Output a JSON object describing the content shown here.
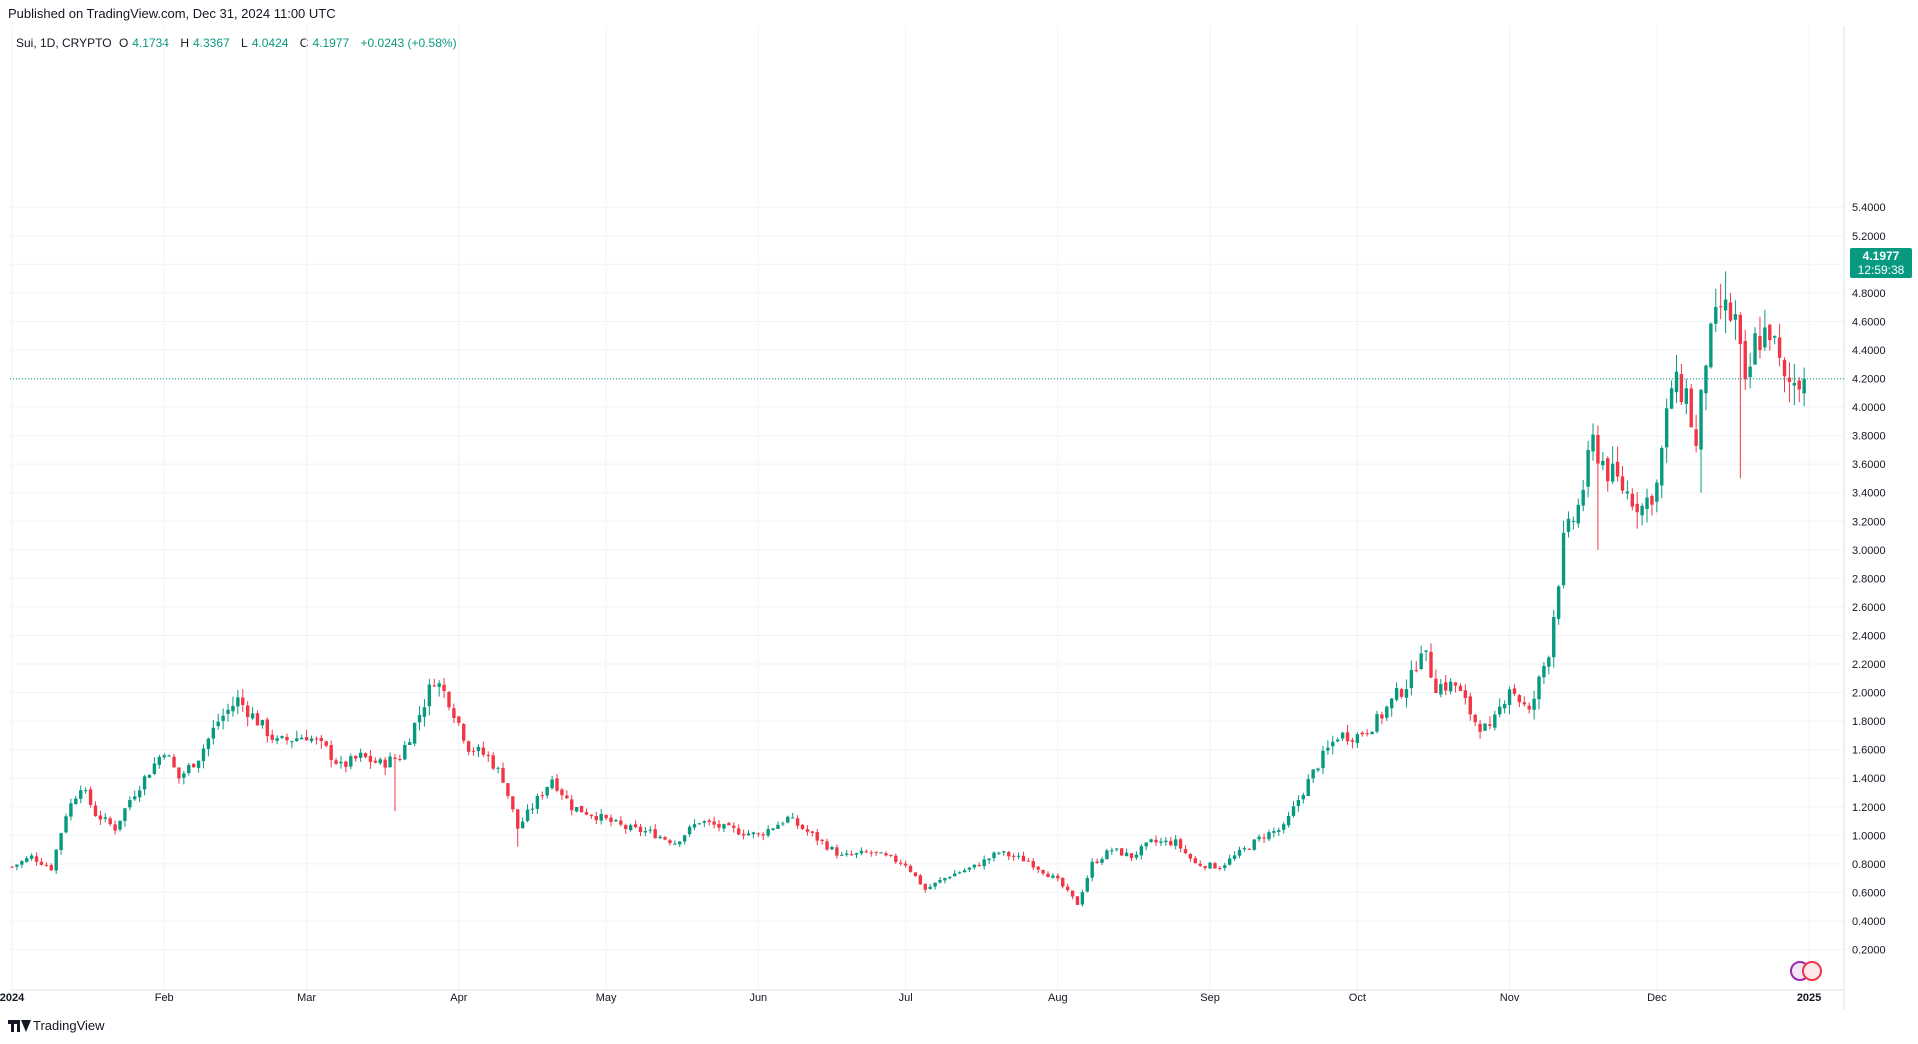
{
  "header": {
    "published": "Published on TradingView.com, Dec 31, 2024 11:00 UTC"
  },
  "legend": {
    "symbol": "Sui, 1D, CRYPTO",
    "open_label": "O",
    "open": "4.1734",
    "high_label": "H",
    "high": "4.3367",
    "low_label": "L",
    "low": "4.0424",
    "close_label": "C",
    "close": "4.1977",
    "change": "+0.0243 (+0.58%)"
  },
  "price_tag": {
    "price": "4.1977",
    "countdown": "12:59:38"
  },
  "footer": {
    "brand": "TradingView"
  },
  "colors": {
    "up": "#089981",
    "down": "#F23645",
    "grid": "#F0F3FA",
    "axis_text": "#131722",
    "last_price_line": "#089981"
  },
  "icons": {
    "logo": "tradingview-logo-icon",
    "events": "economic-events-icon"
  },
  "chart_data": {
    "type": "candlestick",
    "title": "",
    "xlabel": "",
    "ylabel": "",
    "ylim": [
      0,
      5.5
    ],
    "grid": true,
    "y_ticks": [
      "0.2000",
      "0.4000",
      "0.6000",
      "0.8000",
      "1.0000",
      "1.2000",
      "1.4000",
      "1.6000",
      "1.8000",
      "2.0000",
      "2.2000",
      "2.4000",
      "2.6000",
      "2.8000",
      "3.0000",
      "3.2000",
      "3.4000",
      "3.6000",
      "3.8000",
      "4.0000",
      "4.2000",
      "4.4000",
      "4.6000",
      "4.8000",
      "5.0000",
      "5.2000",
      "5.4000"
    ],
    "x_ticks": [
      {
        "label": "2024",
        "date": "2024-01-01"
      },
      {
        "label": "Feb",
        "date": "2024-02-01"
      },
      {
        "label": "Mar",
        "date": "2024-03-01"
      },
      {
        "label": "Apr",
        "date": "2024-04-01"
      },
      {
        "label": "May",
        "date": "2024-05-01"
      },
      {
        "label": "Jun",
        "date": "2024-06-01"
      },
      {
        "label": "Jul",
        "date": "2024-07-01"
      },
      {
        "label": "Aug",
        "date": "2024-08-01"
      },
      {
        "label": "Sep",
        "date": "2024-09-01"
      },
      {
        "label": "Oct",
        "date": "2024-10-01"
      },
      {
        "label": "Nov",
        "date": "2024-11-01"
      },
      {
        "label": "Dec",
        "date": "2024-12-01"
      },
      {
        "label": "2025",
        "date": "2025-01-01"
      }
    ],
    "last_price": 4.1977,
    "start_date": "2024-01-01",
    "end_date": "2024-12-31",
    "close_anchors": [
      [
        "2024-01-01",
        0.78
      ],
      [
        "2024-01-05",
        0.85
      ],
      [
        "2024-01-09",
        0.77
      ],
      [
        "2024-01-12",
        1.15
      ],
      [
        "2024-01-15",
        1.35
      ],
      [
        "2024-01-18",
        1.15
      ],
      [
        "2024-01-22",
        1.05
      ],
      [
        "2024-01-25",
        1.25
      ],
      [
        "2024-01-28",
        1.4
      ],
      [
        "2024-02-01",
        1.6
      ],
      [
        "2024-02-04",
        1.4
      ],
      [
        "2024-02-08",
        1.55
      ],
      [
        "2024-02-12",
        1.8
      ],
      [
        "2024-02-16",
        1.95
      ],
      [
        "2024-02-20",
        1.8
      ],
      [
        "2024-02-24",
        1.65
      ],
      [
        "2024-03-01",
        1.7
      ],
      [
        "2024-03-05",
        1.6
      ],
      [
        "2024-03-08",
        1.48
      ],
      [
        "2024-03-12",
        1.55
      ],
      [
        "2024-03-16",
        1.5
      ],
      [
        "2024-03-20",
        1.55
      ],
      [
        "2024-03-24",
        1.85
      ],
      [
        "2024-03-27",
        2.1
      ],
      [
        "2024-03-30",
        1.95
      ],
      [
        "2024-04-03",
        1.62
      ],
      [
        "2024-04-07",
        1.55
      ],
      [
        "2024-04-10",
        1.4
      ],
      [
        "2024-04-13",
        1.05
      ],
      [
        "2024-04-17",
        1.25
      ],
      [
        "2024-04-20",
        1.4
      ],
      [
        "2024-04-24",
        1.2
      ],
      [
        "2024-04-28",
        1.15
      ],
      [
        "2024-05-05",
        1.05
      ],
      [
        "2024-05-10",
        1.02
      ],
      [
        "2024-05-15",
        0.95
      ],
      [
        "2024-05-20",
        1.1
      ],
      [
        "2024-05-25",
        1.05
      ],
      [
        "2024-06-01",
        1.0
      ],
      [
        "2024-06-07",
        1.12
      ],
      [
        "2024-06-12",
        1.0
      ],
      [
        "2024-06-18",
        0.85
      ],
      [
        "2024-06-24",
        0.88
      ],
      [
        "2024-07-01",
        0.8
      ],
      [
        "2024-07-05",
        0.62
      ],
      [
        "2024-07-10",
        0.72
      ],
      [
        "2024-07-15",
        0.78
      ],
      [
        "2024-07-20",
        0.88
      ],
      [
        "2024-07-26",
        0.82
      ],
      [
        "2024-08-01",
        0.68
      ],
      [
        "2024-08-05",
        0.52
      ],
      [
        "2024-08-08",
        0.8
      ],
      [
        "2024-08-12",
        0.9
      ],
      [
        "2024-08-16",
        0.85
      ],
      [
        "2024-08-20",
        0.95
      ],
      [
        "2024-08-25",
        0.95
      ],
      [
        "2024-08-29",
        0.8
      ],
      [
        "2024-09-03",
        0.78
      ],
      [
        "2024-09-08",
        0.9
      ],
      [
        "2024-09-12",
        1.0
      ],
      [
        "2024-09-16",
        1.05
      ],
      [
        "2024-09-19",
        1.25
      ],
      [
        "2024-09-23",
        1.5
      ],
      [
        "2024-09-27",
        1.7
      ],
      [
        "2024-10-01",
        1.7
      ],
      [
        "2024-10-05",
        1.8
      ],
      [
        "2024-10-09",
        1.98
      ],
      [
        "2024-10-12",
        2.1
      ],
      [
        "2024-10-14",
        2.33
      ],
      [
        "2024-10-17",
        2.05
      ],
      [
        "2024-10-21",
        2.05
      ],
      [
        "2024-10-25",
        1.8
      ],
      [
        "2024-10-28",
        1.72
      ],
      [
        "2024-11-01",
        2.05
      ],
      [
        "2024-11-05",
        1.85
      ],
      [
        "2024-11-09",
        2.3
      ],
      [
        "2024-11-12",
        3.05
      ],
      [
        "2024-11-15",
        3.3
      ],
      [
        "2024-11-18",
        3.75
      ],
      [
        "2024-11-21",
        3.55
      ],
      [
        "2024-11-25",
        3.4
      ],
      [
        "2024-11-28",
        3.3
      ],
      [
        "2024-12-01",
        3.45
      ],
      [
        "2024-12-04",
        4.15
      ],
      [
        "2024-12-07",
        4.1
      ],
      [
        "2024-12-09",
        3.7
      ],
      [
        "2024-12-11",
        4.35
      ],
      [
        "2024-12-14",
        4.7
      ],
      [
        "2024-12-17",
        4.6
      ],
      [
        "2024-12-19",
        4.1
      ],
      [
        "2024-12-21",
        4.45
      ],
      [
        "2024-12-24",
        4.55
      ],
      [
        "2024-12-27",
        4.15
      ],
      [
        "2024-12-31",
        4.1977
      ]
    ],
    "spikes": [
      {
        "date": "2024-03-19",
        "low": 1.17
      },
      {
        "date": "2024-04-13",
        "low": 0.92
      },
      {
        "date": "2024-11-19",
        "low": 3.0
      },
      {
        "date": "2024-12-10",
        "low": 3.4
      },
      {
        "date": "2024-12-18",
        "low": 3.5
      },
      {
        "date": "2024-12-15",
        "high": 4.95
      }
    ]
  }
}
